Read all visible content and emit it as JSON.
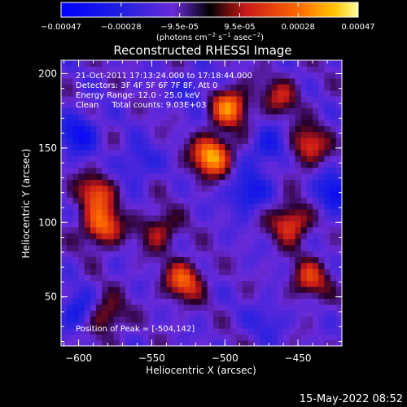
{
  "chart_data": {
    "type": "heatmap",
    "title": "Reconstructed RHESSI Image",
    "xlabel": "Heliocentric X (arcsec)",
    "ylabel": "Heliocentric Y (arcsec)",
    "xlim": [
      -612,
      -420
    ],
    "ylim": [
      17,
      209
    ],
    "xticks": [
      -600,
      -550,
      -500,
      -450
    ],
    "xtick_labels": [
      "-600",
      "-550",
      "-500",
      "-450"
    ],
    "yticks": [
      50,
      100,
      150,
      200
    ],
    "ytick_labels": [
      "50",
      "100",
      "150",
      "200"
    ],
    "colorbar": {
      "vmin": -0.00047,
      "vmax": 0.00047,
      "ticks": [
        -0.00047,
        -0.00028,
        -9.5e-05,
        9.5e-05,
        0.00028,
        0.00047
      ],
      "tick_labels": [
        "-0.00047",
        "-0.00028",
        "-9.5e-05",
        "9.5e-05",
        "0.00028",
        "0.00047"
      ],
      "unit_label": "(photons cm⁻² s⁻¹ asec⁻²)"
    },
    "annotations": [
      "21-Oct-2011 17:13:24.000 to 17:18:44.000",
      "Detectors: 3F 4F 5F 6F 7F 8F, Att 0",
      "Energy Range: 12.0 - 25.0 keV",
      "Clean     Total counts: 9.03E+03",
      "Position of Peak = [-504,142]"
    ],
    "peak": {
      "x": -504,
      "y": 142,
      "value": 0.00047
    },
    "bright_sources": [
      {
        "x": -509,
        "y": 145,
        "value": 0.00047
      },
      {
        "x": -497,
        "y": 178,
        "value": 0.00038
      },
      {
        "x": -584,
        "y": 98,
        "value": 0.00036
      },
      {
        "x": -588,
        "y": 120,
        "value": 0.00028
      },
      {
        "x": -528,
        "y": 61,
        "value": 0.00032
      },
      {
        "x": -455,
        "y": 100,
        "value": 0.0003
      },
      {
        "x": -443,
        "y": 152,
        "value": 0.00027
      },
      {
        "x": -582,
        "y": 38,
        "value": 0.00022
      },
      {
        "x": -545,
        "y": 95,
        "value": 0.0002
      },
      {
        "x": -442,
        "y": 62,
        "value": 0.00024
      },
      {
        "x": -462,
        "y": 185,
        "value": 0.00018
      }
    ],
    "dark_sources": [
      {
        "x": -485,
        "y": 120,
        "value": -0.00028
      },
      {
        "x": -470,
        "y": 150,
        "value": -0.00024
      },
      {
        "x": -600,
        "y": 160,
        "value": -0.0003
      },
      {
        "x": -425,
        "y": 120,
        "value": -0.0003
      },
      {
        "x": -560,
        "y": 140,
        "value": -0.0002
      },
      {
        "x": -600,
        "y": 40,
        "value": -0.00026
      },
      {
        "x": -520,
        "y": 190,
        "value": -0.00018
      },
      {
        "x": -470,
        "y": 35,
        "value": -0.00016
      }
    ]
  },
  "footer": {
    "timestamp": "15-May-2022 08:52"
  }
}
